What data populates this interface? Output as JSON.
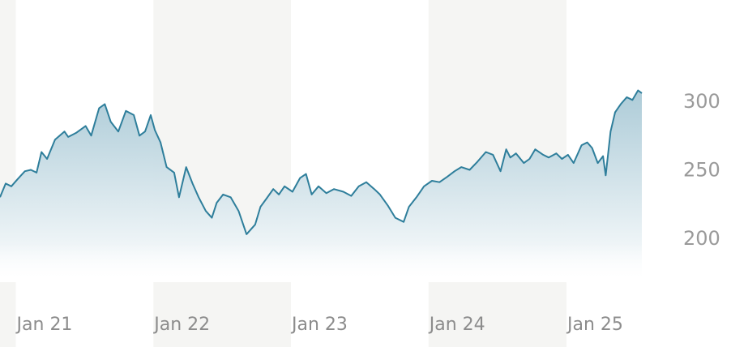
{
  "chart_data": {
    "type": "area",
    "x_tick_labels": [
      "Jan 21",
      "Jan 22",
      "Jan 23",
      "Jan 24",
      "Jan 25"
    ],
    "y_tick_labels": [
      "300",
      "250",
      "200"
    ],
    "y_ticks": [
      300,
      250,
      200
    ],
    "ylim": [
      170,
      320
    ],
    "xlim": [
      "2020-11-20",
      "2025-07-20"
    ],
    "grid": false,
    "colors": {
      "line": "#2e7e9b",
      "fill_top": "#a9c9d6",
      "band": "#f5f5f3"
    },
    "series": [
      {
        "x": [
          "2020-11-20",
          "2020-12-05",
          "2020-12-20",
          "2021-01-05",
          "2021-01-25",
          "2021-02-10",
          "2021-02-25",
          "2021-03-10",
          "2021-03-25",
          "2021-04-15",
          "2021-05-10",
          "2021-05-20",
          "2021-06-10",
          "2021-07-05",
          "2021-07-20",
          "2021-08-10",
          "2021-08-25",
          "2021-09-10",
          "2021-09-30",
          "2021-10-20",
          "2021-11-10",
          "2021-11-25",
          "2021-12-10",
          "2021-12-25",
          "2022-01-05",
          "2022-01-20",
          "2022-02-05",
          "2022-02-25",
          "2022-03-10",
          "2022-03-29",
          "2022-04-15",
          "2022-05-01",
          "2022-05-20",
          "2022-06-05",
          "2022-06-18",
          "2022-07-05",
          "2022-07-25",
          "2022-08-15",
          "2022-09-05",
          "2022-09-28",
          "2022-10-12",
          "2022-10-28",
          "2022-11-15",
          "2022-11-30",
          "2022-12-15",
          "2023-01-05",
          "2023-01-25",
          "2023-02-10",
          "2023-02-25",
          "2023-03-15",
          "2023-04-05",
          "2023-04-25",
          "2023-05-20",
          "2023-06-10",
          "2023-06-30",
          "2023-07-20",
          "2023-08-10",
          "2023-08-25",
          "2023-09-15",
          "2023-10-05",
          "2023-10-27",
          "2023-11-10",
          "2023-11-30",
          "2023-12-20",
          "2024-01-10",
          "2024-01-30",
          "2024-02-20",
          "2024-03-10",
          "2024-03-28",
          "2024-04-19",
          "2024-05-10",
          "2024-06-01",
          "2024-06-20",
          "2024-07-10",
          "2024-07-25",
          "2024-08-05",
          "2024-08-20",
          "2024-09-10",
          "2024-09-25",
          "2024-10-10",
          "2024-10-31",
          "2024-11-15",
          "2024-12-05",
          "2024-12-20",
          "2025-01-05",
          "2025-01-20",
          "2025-02-10",
          "2025-02-25",
          "2025-03-10",
          "2025-03-25",
          "2025-04-08",
          "2025-04-15",
          "2025-04-28",
          "2025-05-10",
          "2025-05-25",
          "2025-06-10",
          "2025-06-25",
          "2025-07-10",
          "2025-07-20"
        ],
        "y": [
          230,
          240,
          238,
          243,
          249,
          250,
          248,
          263,
          258,
          272,
          278,
          274,
          277,
          282,
          275,
          295,
          298,
          285,
          278,
          293,
          290,
          275,
          278,
          290,
          279,
          270,
          252,
          248,
          230,
          252,
          240,
          230,
          220,
          215,
          226,
          232,
          230,
          220,
          203,
          210,
          223,
          229,
          236,
          232,
          238,
          234,
          244,
          247,
          232,
          238,
          233,
          236,
          234,
          231,
          238,
          241,
          236,
          232,
          224,
          215,
          212,
          223,
          230,
          238,
          242,
          241,
          245,
          249,
          252,
          250,
          256,
          263,
          261,
          249,
          265,
          259,
          262,
          255,
          258,
          265,
          261,
          259,
          262,
          258,
          261,
          255,
          268,
          270,
          266,
          255,
          260,
          246,
          278,
          292,
          298,
          303,
          301,
          308,
          306
        ]
      }
    ]
  }
}
